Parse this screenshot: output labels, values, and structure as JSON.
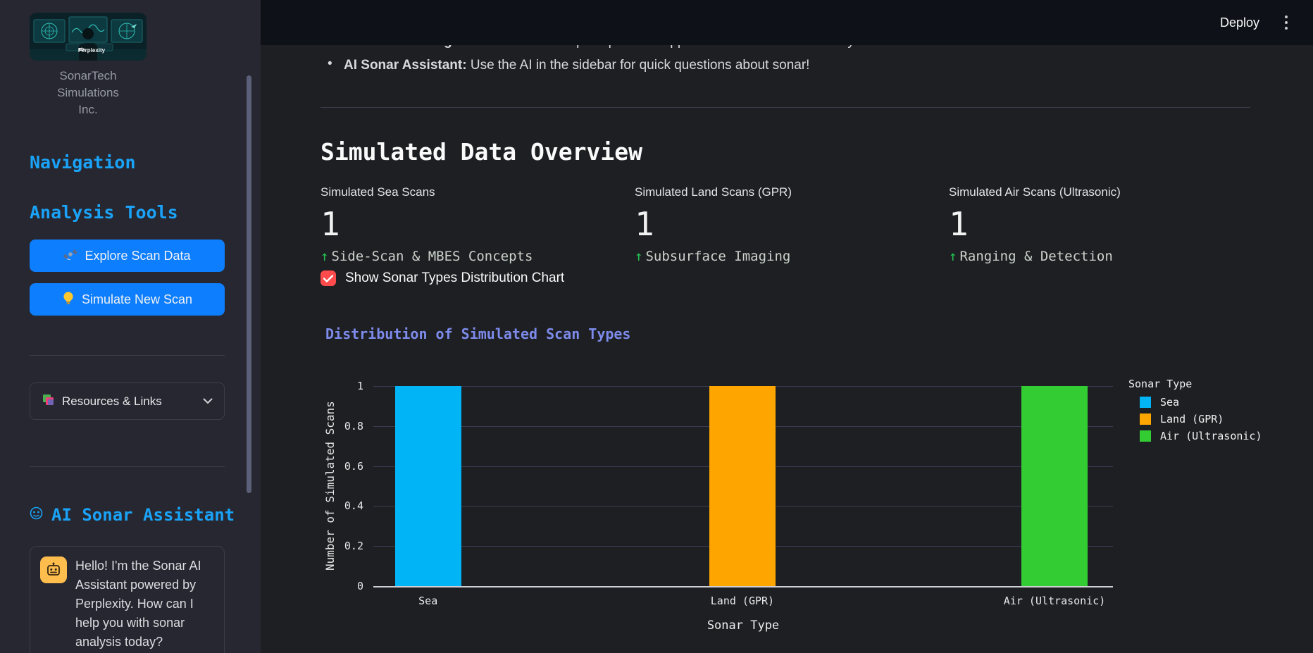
{
  "header": {
    "deploy_label": "Deploy"
  },
  "sidebar": {
    "logo_watermark": "Perplexity",
    "caption_line1": "SonarTech Simulations",
    "caption_line2": "Inc.",
    "nav_heading": "Navigation",
    "tools_heading": "Analysis Tools",
    "buttons": [
      {
        "label": "Explore Scan Data",
        "icon": "satellite-icon"
      },
      {
        "label": "Simulate New Scan",
        "icon": "lightbulb-icon"
      }
    ],
    "expander_label": "Resources & Links",
    "assistant_heading": "AI Sonar Assistant",
    "chat_message": "Hello! I'm the Sonar AI Assistant powered by Perplexity. How can I help you with sonar analysis today?"
  },
  "main": {
    "bullets": [
      {
        "bullet": "•",
        "bold": "Sonar Technologies:",
        "text": " Learn about the principles and applications of different sonar systems."
      },
      {
        "bullet": "•",
        "bold": "AI Sonar Assistant:",
        "text": " Use the AI in the sidebar for quick questions about sonar!"
      }
    ],
    "section_title": "Simulated Data Overview",
    "metrics": [
      {
        "label": "Simulated Sea Scans",
        "value": "1",
        "arrow": "↑",
        "delta": "Side-Scan & MBES Concepts"
      },
      {
        "label": "Simulated Land Scans (GPR)",
        "value": "1",
        "arrow": "↑",
        "delta": "Subsurface Imaging"
      },
      {
        "label": "Simulated Air Scans (Ultrasonic)",
        "value": "1",
        "arrow": "↑",
        "delta": "Ranging & Detection"
      }
    ],
    "checkbox_label": "Show Sonar Types Distribution Chart",
    "checkbox_checked": true,
    "chart_title": "Distribution of Simulated Scan Types"
  },
  "chart_data": {
    "type": "bar",
    "title": "Distribution of Simulated Scan Types",
    "categories": [
      "Sea",
      "Land (GPR)",
      "Air (Ultrasonic)"
    ],
    "values": [
      1,
      1,
      1
    ],
    "bar_colors": [
      "#00b4f5",
      "#ffa500",
      "#33cc33"
    ],
    "xlabel": "Sonar Type",
    "ylabel": "Number of Simulated Scans",
    "ylim": [
      0,
      1
    ],
    "yticks": [
      0,
      0.2,
      0.4,
      0.6,
      0.8,
      1
    ],
    "ytick_labels": [
      "0",
      "0.2",
      "0.4",
      "0.6",
      "0.8",
      "1"
    ],
    "legend_title": "Sonar Type",
    "legend_position": "right",
    "grid": true
  },
  "colors": {
    "accent_blue": "#1aa3f8",
    "button_blue": "#0d7efd",
    "checkbox_red": "#ff4b4b",
    "delta_green": "#21c354",
    "chart_title_purple": "#7d8bea"
  }
}
